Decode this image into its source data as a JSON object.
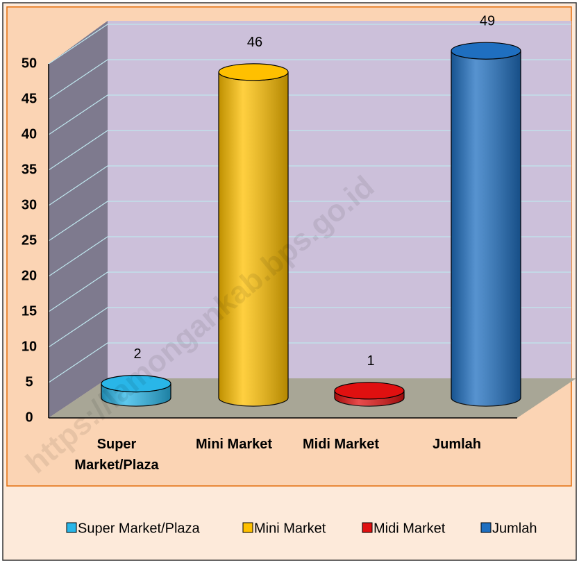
{
  "chart_data": {
    "type": "bar3d-cylinder",
    "categories": [
      "Super Market/Plaza",
      "Mini Market",
      "Midi Market",
      "Jumlah"
    ],
    "values": [
      2,
      46,
      1,
      49
    ],
    "colors": [
      "#29b6e8",
      "#ffc000",
      "#e01010",
      "#1f6fc0"
    ],
    "ylim": [
      0,
      50
    ],
    "yticks": [
      0,
      5,
      10,
      15,
      20,
      25,
      30,
      35,
      40,
      45,
      50
    ],
    "grid": true,
    "legend": "bottom",
    "watermark": "https://lamongankab.bps.go.id"
  }
}
